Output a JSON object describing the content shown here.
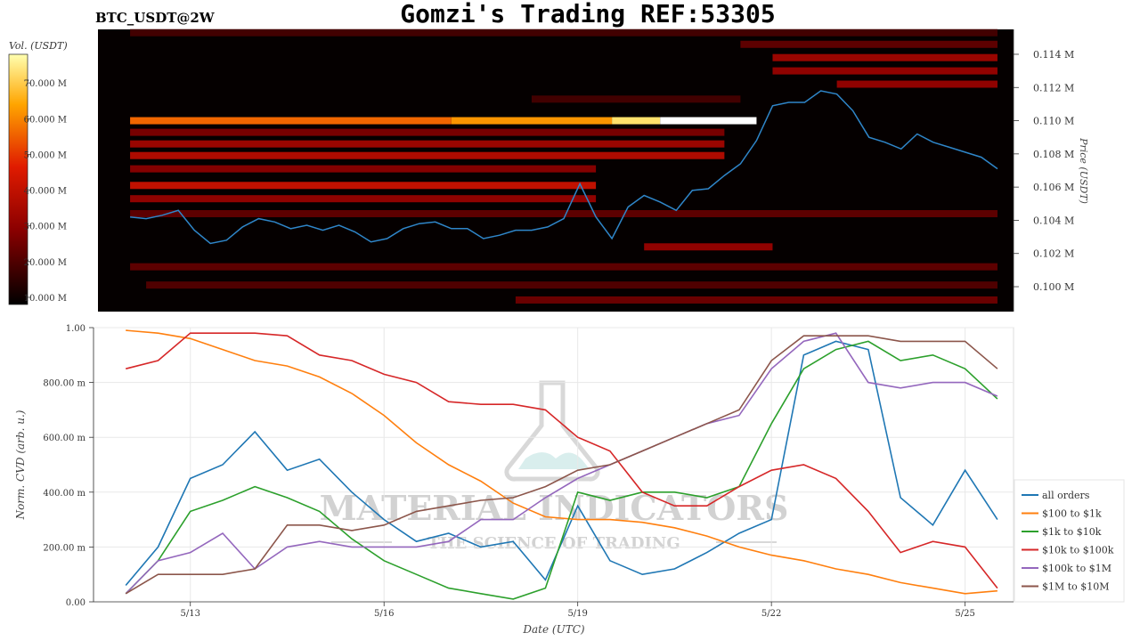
{
  "header": {
    "symbol": "BTC_USDT@2W",
    "title": "Gomzi's Trading REF:53305"
  },
  "watermark": {
    "name": "MATERIAL INDICATORS",
    "tagline": "THE SCIENCE OF TRADING"
  },
  "chart_data": [
    {
      "type": "heatmap",
      "colorbar": {
        "label": "Vol. (USDT)",
        "ticks": [
          "10.000 M",
          "20.000 M",
          "30.000 M",
          "40.000 M",
          "50.000 M",
          "60.000 M",
          "70.000 M"
        ],
        "range": [
          8000000,
          78000000
        ]
      },
      "ylabel": "Price (USDT)",
      "y_ticks": [
        "0.100 M",
        "0.102 M",
        "0.104 M",
        "0.106 M",
        "0.108 M",
        "0.110 M",
        "0.112 M",
        "0.114 M"
      ],
      "ylim": [
        98500,
        115500
      ],
      "price_color": "#2f86c9",
      "price_series": {
        "x": [
          "5/12 00:00",
          "5/12 06:00",
          "5/12 12:00",
          "5/12 18:00",
          "5/13 00:00",
          "5/13 06:00",
          "5/13 12:00",
          "5/13 18:00",
          "5/14 00:00",
          "5/14 06:00",
          "5/14 12:00",
          "5/14 18:00",
          "5/15 00:00",
          "5/15 06:00",
          "5/15 12:00",
          "5/15 18:00",
          "5/16 00:00",
          "5/16 06:00",
          "5/16 12:00",
          "5/16 18:00",
          "5/17 00:00",
          "5/17 06:00",
          "5/17 12:00",
          "5/17 18:00",
          "5/18 00:00",
          "5/18 06:00",
          "5/18 12:00",
          "5/18 18:00",
          "5/19 00:00",
          "5/19 06:00",
          "5/19 12:00",
          "5/19 18:00",
          "5/20 00:00",
          "5/20 06:00",
          "5/20 12:00",
          "5/20 18:00",
          "5/21 00:00",
          "5/21 06:00",
          "5/21 12:00",
          "5/21 18:00",
          "5/22 00:00",
          "5/22 06:00",
          "5/22 12:00",
          "5/22 18:00",
          "5/23 00:00",
          "5/23 06:00",
          "5/23 12:00",
          "5/23 18:00",
          "5/24 00:00",
          "5/24 06:00",
          "5/24 12:00",
          "5/24 18:00",
          "5/25 00:00",
          "5/25 06:00",
          "5/25 12:00"
        ],
        "values": [
          104200,
          104100,
          104300,
          104600,
          103400,
          102600,
          102800,
          103600,
          104100,
          103900,
          103500,
          103700,
          103400,
          103700,
          103300,
          102700,
          102900,
          103500,
          103800,
          103900,
          103500,
          103500,
          102900,
          103100,
          103400,
          103400,
          103600,
          104100,
          106200,
          104200,
          102900,
          104800,
          105500,
          105100,
          104600,
          105800,
          105900,
          106700,
          107400,
          108800,
          110900,
          111100,
          111100,
          111800,
          111600,
          110600,
          109000,
          108700,
          108300,
          109200,
          108700,
          108400,
          108100,
          107800,
          107100
        ]
      },
      "walls": [
        {
          "price": 115300,
          "start": "5/12",
          "end": "5/25 12:00",
          "volume": 18000000
        },
        {
          "price": 114600,
          "start": "5/21 12:00",
          "end": "5/25 12:00",
          "volume": 22000000
        },
        {
          "price": 113800,
          "start": "5/22",
          "end": "5/25 12:00",
          "volume": 32000000
        },
        {
          "price": 113000,
          "start": "5/22",
          "end": "5/25 12:00",
          "volume": 30000000
        },
        {
          "price": 112200,
          "start": "5/23",
          "end": "5/25 12:00",
          "volume": 30000000
        },
        {
          "price": 111300,
          "start": "5/18 06:00",
          "end": "5/21 12:00",
          "volume": 18000000
        },
        {
          "price": 110000,
          "start": "5/12",
          "end": "5/17",
          "volume": 56000000
        },
        {
          "price": 110000,
          "start": "5/17",
          "end": "5/19 12:00",
          "volume": 62000000
        },
        {
          "price": 110000,
          "start": "5/19 12:00",
          "end": "5/20 06:00",
          "volume": 71000000
        },
        {
          "price": 110000,
          "start": "5/20 06:00",
          "end": "5/21 18:00",
          "volume": 78000000
        },
        {
          "price": 109300,
          "start": "5/12",
          "end": "5/21 06:00",
          "volume": 26000000
        },
        {
          "price": 108600,
          "start": "5/12",
          "end": "5/21 06:00",
          "volume": 32000000
        },
        {
          "price": 107900,
          "start": "5/12",
          "end": "5/21 06:00",
          "volume": 36000000
        },
        {
          "price": 107100,
          "start": "5/12",
          "end": "5/19 06:00",
          "volume": 28000000
        },
        {
          "price": 106100,
          "start": "5/12",
          "end": "5/19 06:00",
          "volume": 40000000
        },
        {
          "price": 105300,
          "start": "5/12",
          "end": "5/19 06:00",
          "volume": 30000000
        },
        {
          "price": 104400,
          "start": "5/12",
          "end": "5/25 12:00",
          "volume": 22000000
        },
        {
          "price": 102400,
          "start": "5/20",
          "end": "5/22",
          "volume": 30000000
        },
        {
          "price": 101200,
          "start": "5/12",
          "end": "5/25 12:00",
          "volume": 22000000
        },
        {
          "price": 100100,
          "start": "5/12 06:00",
          "end": "5/25 12:00",
          "volume": 20000000
        },
        {
          "price": 99200,
          "start": "5/18",
          "end": "5/25 12:00",
          "volume": 24000000
        }
      ]
    },
    {
      "type": "line",
      "xlabel": "Date (UTC)",
      "ylabel": "Norm. CVD (arb. u.)",
      "ylim": [
        0,
        1
      ],
      "y_ticks": [
        "0.00",
        "200.00 m",
        "400.00 m",
        "600.00 m",
        "800.00 m",
        "1.00"
      ],
      "x_ticks": [
        "5/13",
        "5/16",
        "5/19",
        "5/22",
        "5/25"
      ],
      "x": [
        "5/12 00:00",
        "5/12 12:00",
        "5/13 00:00",
        "5/13 12:00",
        "5/14 00:00",
        "5/14 12:00",
        "5/15 00:00",
        "5/15 12:00",
        "5/16 00:00",
        "5/16 12:00",
        "5/17 00:00",
        "5/17 12:00",
        "5/18 00:00",
        "5/18 12:00",
        "5/19 00:00",
        "5/19 12:00",
        "5/20 00:00",
        "5/20 12:00",
        "5/21 00:00",
        "5/21 12:00",
        "5/22 00:00",
        "5/22 12:00",
        "5/23 00:00",
        "5/23 12:00",
        "5/24 00:00",
        "5/24 12:00",
        "5/25 00:00",
        "5/25 12:00"
      ],
      "series": [
        {
          "name": "all orders",
          "color": "#1f77b4",
          "values": [
            0.06,
            0.2,
            0.45,
            0.5,
            0.62,
            0.48,
            0.52,
            0.4,
            0.3,
            0.22,
            0.25,
            0.2,
            0.22,
            0.08,
            0.35,
            0.15,
            0.1,
            0.12,
            0.18,
            0.25,
            0.3,
            0.9,
            0.95,
            0.92,
            0.38,
            0.28,
            0.48,
            0.3
          ]
        },
        {
          "name": "$100 to $1k",
          "color": "#ff7f0e",
          "values": [
            0.99,
            0.98,
            0.96,
            0.92,
            0.88,
            0.86,
            0.82,
            0.76,
            0.68,
            0.58,
            0.5,
            0.44,
            0.36,
            0.31,
            0.3,
            0.3,
            0.29,
            0.27,
            0.24,
            0.2,
            0.17,
            0.15,
            0.12,
            0.1,
            0.07,
            0.05,
            0.03,
            0.04
          ]
        },
        {
          "name": "$1k to $10k",
          "color": "#2ca02c",
          "values": [
            0.03,
            0.15,
            0.33,
            0.37,
            0.42,
            0.38,
            0.33,
            0.23,
            0.15,
            0.1,
            0.05,
            0.03,
            0.01,
            0.05,
            0.4,
            0.37,
            0.4,
            0.4,
            0.38,
            0.42,
            0.65,
            0.85,
            0.92,
            0.95,
            0.88,
            0.9,
            0.85,
            0.74
          ]
        },
        {
          "name": "$10k to $100k",
          "color": "#d62728",
          "values": [
            0.85,
            0.88,
            0.98,
            0.98,
            0.98,
            0.97,
            0.9,
            0.88,
            0.83,
            0.8,
            0.73,
            0.72,
            0.72,
            0.7,
            0.6,
            0.55,
            0.4,
            0.35,
            0.35,
            0.42,
            0.48,
            0.5,
            0.45,
            0.33,
            0.18,
            0.22,
            0.2,
            0.05
          ]
        },
        {
          "name": "$100k to $1M",
          "color": "#9467bd",
          "values": [
            0.03,
            0.15,
            0.18,
            0.25,
            0.12,
            0.2,
            0.22,
            0.2,
            0.2,
            0.2,
            0.22,
            0.3,
            0.3,
            0.38,
            0.45,
            0.5,
            0.55,
            0.6,
            0.65,
            0.68,
            0.85,
            0.95,
            0.98,
            0.8,
            0.78,
            0.8,
            0.8,
            0.75
          ]
        },
        {
          "name": "$1M to $10M",
          "color": "#8c564b",
          "values": [
            0.03,
            0.1,
            0.1,
            0.1,
            0.12,
            0.28,
            0.28,
            0.26,
            0.28,
            0.33,
            0.35,
            0.37,
            0.38,
            0.42,
            0.48,
            0.5,
            0.55,
            0.6,
            0.65,
            0.7,
            0.88,
            0.97,
            0.97,
            0.97,
            0.95,
            0.95,
            0.95,
            0.85
          ]
        }
      ],
      "legend_position": "right"
    }
  ]
}
